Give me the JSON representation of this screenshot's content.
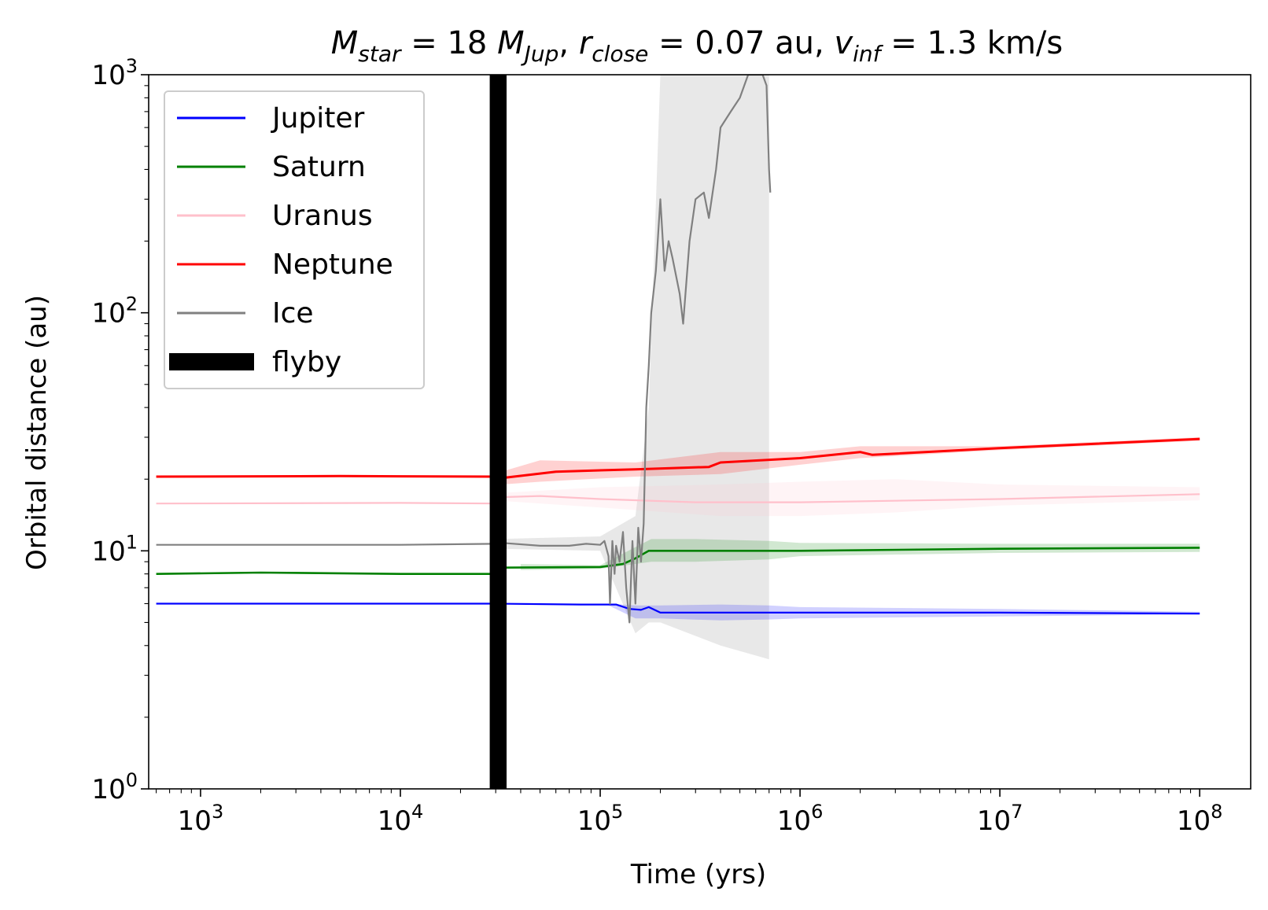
{
  "chart_data": {
    "type": "line",
    "title": {
      "M": "M",
      "M_sub": "star",
      "M_val": "18",
      "M_unit": "M",
      "M_unit_sub": "Jup",
      "r": "r",
      "r_sub": "close",
      "r_val": "0.07 au",
      "v": "v",
      "v_sub": "inf",
      "v_val": "1.3 km/s",
      "eq": " = ",
      "sep": ", "
    },
    "xlabel": "Time (yrs)",
    "ylabel": "Orbital distance (au)",
    "xscale": "log",
    "yscale": "log",
    "xlim": [
      550,
      180000000
    ],
    "ylim": [
      1,
      1000
    ],
    "x_ticks": [
      {
        "value": 1000,
        "base": "10",
        "exp": "3"
      },
      {
        "value": 10000,
        "base": "10",
        "exp": "4"
      },
      {
        "value": 100000,
        "base": "10",
        "exp": "5"
      },
      {
        "value": 1000000,
        "base": "10",
        "exp": "6"
      },
      {
        "value": 10000000,
        "base": "10",
        "exp": "7"
      },
      {
        "value": 100000000,
        "base": "10",
        "exp": "8"
      }
    ],
    "y_ticks": [
      {
        "value": 1,
        "base": "10",
        "exp": "0"
      },
      {
        "value": 10,
        "base": "10",
        "exp": "1"
      },
      {
        "value": 100,
        "base": "10",
        "exp": "2"
      },
      {
        "value": 1000,
        "base": "10",
        "exp": "3"
      }
    ],
    "legend_position": "top-left",
    "legend": [
      {
        "label": "Jupiter",
        "color": "#0000ff"
      },
      {
        "label": "Saturn",
        "color": "#008000"
      },
      {
        "label": "Uranus",
        "color": "#ffc0cb"
      },
      {
        "label": "Neptune",
        "color": "#ff0000"
      },
      {
        "label": "Ice",
        "color": "#808080"
      },
      {
        "label": "flyby",
        "color": "#000000",
        "style": "thick"
      }
    ],
    "flyby": {
      "x_start": 28000,
      "x_end": 34000
    },
    "series": [
      {
        "name": "Jupiter",
        "color": "#0000ff",
        "x": [
          600,
          5000,
          30000,
          80000,
          120000,
          140000,
          160000,
          175000,
          200000,
          1000000,
          10000000,
          100000000
        ],
        "y": [
          6.0,
          6.0,
          6.0,
          5.95,
          5.95,
          5.7,
          5.65,
          5.8,
          5.5,
          5.5,
          5.5,
          5.45
        ],
        "band": {
          "x": [
            110000,
            150000,
            200000,
            400000,
            700000,
            1000000,
            10000000,
            100000000
          ],
          "lo": [
            5.9,
            5.2,
            5.2,
            5.1,
            5.15,
            5.2,
            5.3,
            5.4
          ],
          "hi": [
            6.0,
            5.9,
            5.9,
            5.95,
            5.9,
            5.8,
            5.7,
            5.55
          ]
        }
      },
      {
        "name": "Saturn",
        "color": "#008000",
        "x": [
          600,
          2000,
          10000,
          30000,
          32000,
          100000,
          130000,
          150000,
          175000,
          200000,
          1000000,
          10000000,
          100000000
        ],
        "y": [
          8.0,
          8.1,
          8.0,
          8.0,
          8.5,
          8.55,
          8.8,
          9.3,
          10.0,
          10.0,
          10.0,
          10.2,
          10.3
        ],
        "band": {
          "x": [
            40000,
            100000,
            180000,
            300000,
            700000,
            1000000,
            10000000,
            100000000
          ],
          "lo": [
            8.3,
            8.4,
            9.0,
            9.0,
            9.2,
            9.5,
            9.8,
            9.9
          ],
          "hi": [
            8.8,
            8.7,
            11.2,
            11.2,
            11.0,
            10.8,
            10.7,
            10.7
          ]
        }
      },
      {
        "name": "Uranus",
        "color": "#ffc0cb",
        "x": [
          600,
          10000,
          30000,
          32000,
          50000,
          100000,
          300000,
          1000000,
          10000000,
          100000000
        ],
        "y": [
          15.8,
          15.9,
          15.8,
          16.8,
          17.0,
          16.5,
          16.0,
          16.0,
          16.5,
          17.3
        ],
        "band": {
          "x": [
            32000,
            100000,
            400000,
            1000000,
            3000000,
            10000000,
            100000000
          ],
          "lo": [
            16.2,
            15.2,
            14.0,
            14.0,
            14.5,
            15.5,
            16.3
          ],
          "hi": [
            17.5,
            18.5,
            19.0,
            19.5,
            20.0,
            19.0,
            18.5
          ]
        }
      },
      {
        "name": "Neptune",
        "color": "#ff0000",
        "x": [
          600,
          5000,
          30000,
          32000,
          60000,
          150000,
          350000,
          400000,
          1000000,
          2000000,
          2300000,
          10000000,
          100000000
        ],
        "y": [
          20.5,
          20.6,
          20.5,
          20.2,
          21.5,
          22.0,
          22.5,
          23.5,
          24.5,
          26.0,
          25.3,
          27.0,
          29.5
        ],
        "band": {
          "x": [
            32000,
            50000,
            150000,
            400000,
            1000000,
            2000000,
            10000000,
            100000000
          ],
          "lo": [
            19.0,
            19.5,
            20.5,
            21.0,
            23.0,
            24.5,
            26.5,
            29.0
          ],
          "hi": [
            21.5,
            24.0,
            23.5,
            26.0,
            26.0,
            27.5,
            27.5,
            30.0
          ]
        }
      },
      {
        "name": "Ice",
        "color": "#808080",
        "x": [
          600,
          10000,
          30000,
          32000,
          50000,
          70000,
          85000,
          100000,
          105000,
          110000,
          112000,
          115000,
          118000,
          120000,
          125000,
          130000,
          135000,
          140000,
          145000,
          150000,
          155000,
          160000,
          165000,
          170000,
          175000,
          180000,
          190000,
          200000,
          210000,
          220000,
          230000,
          250000,
          260000,
          280000,
          300000,
          330000,
          350000,
          380000,
          400000,
          450000,
          500000,
          550000,
          600000,
          650000,
          680000,
          700000,
          710000
        ],
        "y": [
          10.6,
          10.6,
          10.7,
          10.8,
          10.5,
          10.5,
          10.7,
          10.6,
          11.0,
          9.5,
          6.0,
          11.0,
          8.0,
          10.5,
          9.0,
          12.0,
          7.0,
          5.0,
          11.0,
          6.0,
          12.5,
          9.0,
          13.0,
          40.0,
          60.0,
          100.0,
          150.0,
          300.0,
          150.0,
          200.0,
          170.0,
          120.0,
          90.0,
          200.0,
          300.0,
          320.0,
          250.0,
          400.0,
          600.0,
          700.0,
          800.0,
          1000.0,
          1000.0,
          1000.0,
          900.0,
          400.0,
          320.0
        ],
        "band": {
          "x": [
            30000,
            100000,
            150000,
            175000,
            200000,
            400000,
            700000
          ],
          "lo": [
            10.2,
            10.0,
            4.5,
            5.0,
            5.0,
            4.0,
            3.5
          ],
          "hi": [
            11.2,
            11.5,
            14.0,
            40.0,
            1000.0,
            1000.0,
            1000.0
          ]
        }
      }
    ]
  }
}
